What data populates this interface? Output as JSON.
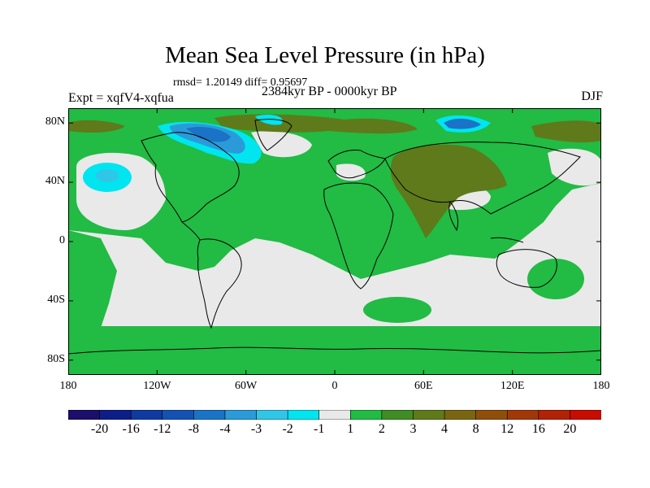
{
  "figure": {
    "title": "Mean Sea Level Pressure (in hPa)",
    "stats": "rmsd= 1.20149  diff= 0.95697",
    "experiment": "Expt = xqfV4-xqfua",
    "period": "2384kyr BP - 0000kyr BP",
    "season": "DJF"
  },
  "axes": {
    "lat_labels": [
      "80N",
      "40N",
      "0",
      "40S",
      "80S"
    ],
    "lat_values": [
      80,
      40,
      0,
      -40,
      -80
    ],
    "lon_labels": [
      "180",
      "120W",
      "60W",
      "0",
      "60E",
      "120E",
      "180"
    ],
    "lon_values": [
      -180,
      -120,
      -60,
      0,
      60,
      120,
      180
    ],
    "lat_range": [
      -90,
      90
    ],
    "lon_range": [
      -180,
      180
    ]
  },
  "colorbar": {
    "colors": [
      "#1b0f6b",
      "#0d1e88",
      "#0f3aa0",
      "#1352b2",
      "#1a73c6",
      "#2a9bd8",
      "#30c6e8",
      "#00e5ef",
      "#e9e9e9",
      "#22bb44",
      "#3f8d24",
      "#5f7a1a",
      "#7a6612",
      "#8f4e0c",
      "#a13808",
      "#b22204",
      "#c90c00"
    ],
    "labels": [
      "-20",
      "-16",
      "-12",
      "-8",
      "-4",
      "-3",
      "-2",
      "-1",
      "1",
      "2",
      "3",
      "4",
      "8",
      "12",
      "16",
      "20"
    ]
  }
}
